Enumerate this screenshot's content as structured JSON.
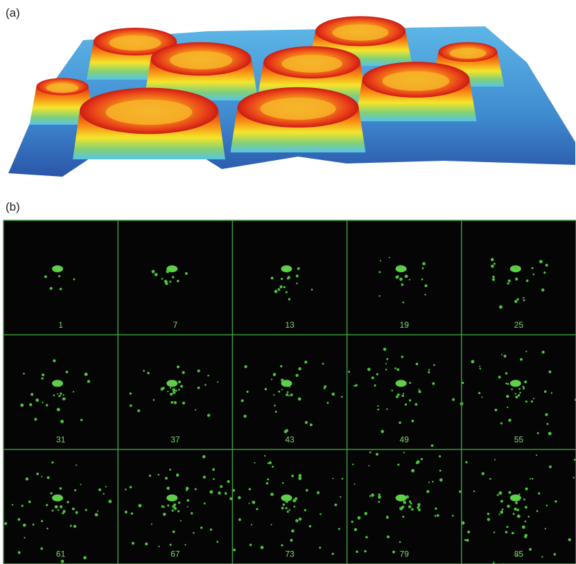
{
  "panels": {
    "a": {
      "label": "(a)"
    },
    "b": {
      "label": "(b)",
      "frames": [
        "1",
        "7",
        "13",
        "19",
        "25",
        "31",
        "37",
        "43",
        "49",
        "55",
        "61",
        "67",
        "73",
        "79",
        "85"
      ]
    }
  }
}
